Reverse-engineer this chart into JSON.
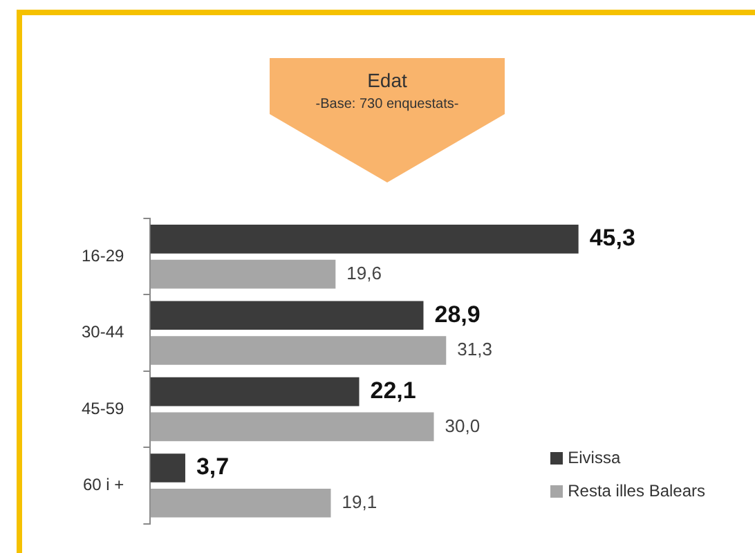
{
  "chart_data": {
    "type": "bar",
    "orientation": "horizontal",
    "title": "Edat",
    "subtitle": "-Base:  730 enquestats-",
    "categories": [
      "16-29",
      "30-44",
      "45-59",
      "60 i +"
    ],
    "series": [
      {
        "name": "Eivissa",
        "color": "#3b3b3b",
        "values": [
          45.3,
          28.9,
          22.1,
          3.7
        ],
        "value_labels": [
          "45,3",
          "28,9",
          "22,1",
          "3,7"
        ]
      },
      {
        "name": "Resta illes Balears",
        "color": "#a6a6a6",
        "values": [
          19.6,
          31.3,
          30.0,
          19.1
        ],
        "value_labels": [
          "19,6",
          "31,3",
          "30,0",
          "19,1"
        ]
      }
    ],
    "legend": "bottom right"
  }
}
